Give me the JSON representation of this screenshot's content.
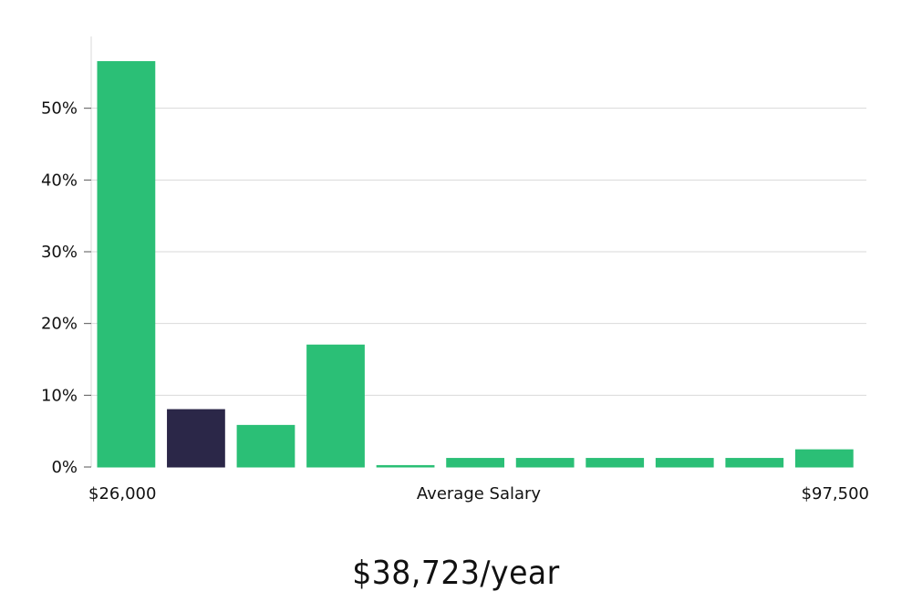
{
  "chart_data": {
    "type": "bar",
    "values": [
      56.5,
      8.0,
      5.8,
      17.0,
      0.2,
      1.2,
      1.2,
      1.2,
      1.2,
      1.2,
      2.4
    ],
    "highlight_index": 1,
    "ylim": [
      0,
      60
    ],
    "y_ticks": [
      0,
      10,
      20,
      30,
      40,
      50
    ],
    "y_tick_format": "{v}%",
    "x_labels": {
      "left": "$26,000",
      "center": "Average Salary",
      "right": "$97,500"
    },
    "grid": true,
    "colors": {
      "bar": "#2bbf76",
      "highlight": "#2b2748"
    }
  },
  "summary": {
    "salary_text": "$38,723/year"
  }
}
